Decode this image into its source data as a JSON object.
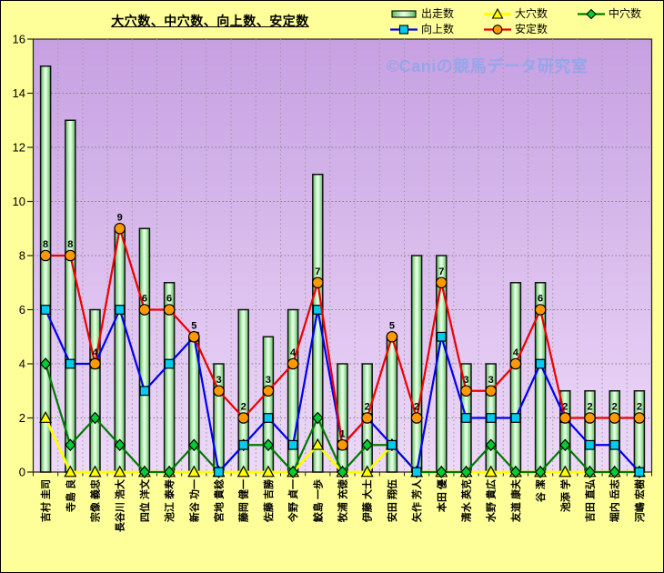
{
  "title": "大穴数、中穴数、向上数、安定数",
  "watermark": "©Caniの競馬データ研究室",
  "colors": {
    "background": "#FFFF99",
    "plot_top": "#C7A0E2",
    "plot_bottom": "#EDD9F8",
    "bar_edge": "#57B857",
    "bar_center": "#E9FFE9",
    "grid": "#808080",
    "axis": "#222222",
    "watermark": "#8FA6EC"
  },
  "legend": [
    {
      "label": "出走数",
      "marker": "bar",
      "col": 0,
      "row": 0
    },
    {
      "label": "大穴数",
      "marker": "triangle",
      "col": 1,
      "row": 0
    },
    {
      "label": "中穴数",
      "marker": "diamond",
      "col": 2,
      "row": 0
    },
    {
      "label": "向上数",
      "marker": "square",
      "col": 0,
      "row": 1
    },
    {
      "label": "安定数",
      "marker": "circle",
      "col": 1,
      "row": 1
    }
  ],
  "chart_data": {
    "type": "bar+line",
    "title": "大穴数、中穴数、向上数、安定数",
    "xlabel": "",
    "ylabel": "",
    "ylim": [
      0,
      16
    ],
    "ytick_step": 2,
    "grid": true,
    "legend_position": "top-right",
    "categories": [
      "吉村 圭司",
      "寺島 良",
      "宗像 義忠",
      "長谷川 浩大",
      "四位 洋文",
      "池江 泰寿",
      "新谷 功一",
      "宮地 貴稔",
      "藤岡 健一",
      "佐藤 吉勝",
      "今野 貞一",
      "鮫島 一歩",
      "牧浦 充徳",
      "伊藤 大士",
      "安田 翔伍",
      "矢作 芳人",
      "本田 優",
      "清水 英克",
      "水野 貴広",
      "友道 康夫",
      "谷 潔",
      "池添 学",
      "吉田 直弘",
      "堀内 岳志",
      "河嶋 宏樹"
    ],
    "series": [
      {
        "name": "出走数",
        "type": "bar",
        "marker": "bar",
        "line_color": "#111111",
        "marker_color": "#8FE08F",
        "values": [
          15,
          13,
          6,
          9,
          9,
          7,
          5,
          4,
          6,
          5,
          6,
          11,
          4,
          4,
          5,
          8,
          8,
          4,
          4,
          7,
          7,
          3,
          3,
          3,
          3
        ]
      },
      {
        "name": "大穴数",
        "type": "line",
        "marker": "triangle",
        "line_color": "#FFFF00",
        "marker_color": "#FFFF00",
        "values": [
          2,
          0,
          0,
          0,
          0,
          0,
          0,
          0,
          0,
          0,
          0,
          1,
          0,
          0,
          1,
          0,
          0,
          0,
          0,
          0,
          0,
          0,
          0,
          0,
          0
        ]
      },
      {
        "name": "中穴数",
        "type": "line",
        "marker": "diamond",
        "line_color": "#007A00",
        "marker_color": "#00CC33",
        "values": [
          4,
          1,
          2,
          1,
          0,
          0,
          1,
          0,
          1,
          1,
          0,
          2,
          0,
          1,
          1,
          0,
          0,
          0,
          1,
          0,
          0,
          1,
          0,
          0,
          0
        ]
      },
      {
        "name": "向上数",
        "type": "line",
        "marker": "square",
        "line_color": "#0000EE",
        "marker_color": "#00CCEE",
        "values": [
          6,
          4,
          4,
          6,
          3,
          4,
          5,
          0,
          1,
          2,
          1,
          6,
          1,
          2,
          1,
          0,
          5,
          2,
          2,
          2,
          4,
          2,
          1,
          1,
          0
        ]
      },
      {
        "name": "安定数",
        "type": "line",
        "marker": "circle",
        "line_color": "#EE0000",
        "marker_color": "#FF9900",
        "data_labels": true,
        "values": [
          8,
          8,
          4,
          9,
          6,
          6,
          5,
          3,
          2,
          3,
          4,
          7,
          1,
          2,
          5,
          2,
          7,
          3,
          3,
          4,
          6,
          2,
          2,
          2,
          2
        ]
      }
    ]
  }
}
